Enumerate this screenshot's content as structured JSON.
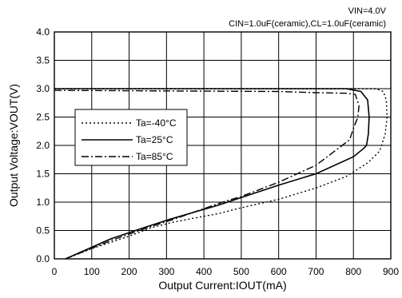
{
  "conditions": {
    "line1": "VIN=4.0V",
    "line2": "CIN=1.0uF(ceramic),CL=1.0uF(ceramic)"
  },
  "chart_data": {
    "type": "line",
    "title": "",
    "xlabel": "Output Current:IOUT(mA)",
    "ylabel": "Output Voltage:VOUT(V)",
    "xlim": [
      0,
      900
    ],
    "ylim": [
      0,
      4.0
    ],
    "xticks": [
      0,
      100,
      200,
      300,
      400,
      500,
      600,
      700,
      800,
      900
    ],
    "yticks": [
      "0.0",
      "0.5",
      "1.0",
      "1.5",
      "2.0",
      "2.5",
      "3.0",
      "3.5",
      "4.0"
    ],
    "grid": true,
    "legend_position": "left-middle",
    "series": [
      {
        "name": "Ta=-40°C",
        "dash": "dotted",
        "x": [
          0,
          740,
          800,
          860,
          880,
          888,
          890,
          885,
          870,
          840,
          780,
          700,
          600,
          500,
          440,
          320,
          260,
          200,
          100,
          30
        ],
        "y": [
          3.0,
          3.0,
          3.0,
          3.0,
          2.95,
          2.8,
          2.5,
          2.2,
          1.9,
          1.7,
          1.45,
          1.25,
          1.05,
          0.9,
          0.8,
          0.65,
          0.55,
          0.4,
          0.18,
          0.0
        ]
      },
      {
        "name": "Ta=25°C",
        "dash": "solid",
        "x": [
          0,
          780,
          820,
          838,
          842,
          840,
          835,
          828,
          800,
          700,
          600,
          500,
          440,
          310,
          240,
          150,
          30
        ],
        "y": [
          3.0,
          3.0,
          2.95,
          2.8,
          2.5,
          2.2,
          2.0,
          1.95,
          1.8,
          1.5,
          1.3,
          1.08,
          0.95,
          0.7,
          0.55,
          0.35,
          0.0
        ]
      },
      {
        "name": "Ta=85°C",
        "dash": "dash-dot",
        "x": [
          0,
          600,
          700,
          780,
          805,
          815,
          812,
          800,
          790,
          700,
          600,
          500,
          450,
          320,
          250,
          150,
          30
        ],
        "y": [
          2.97,
          2.95,
          2.93,
          2.92,
          2.9,
          2.7,
          2.5,
          2.3,
          2.1,
          1.65,
          1.35,
          1.1,
          1.0,
          0.7,
          0.55,
          0.32,
          0.0
        ]
      }
    ]
  }
}
